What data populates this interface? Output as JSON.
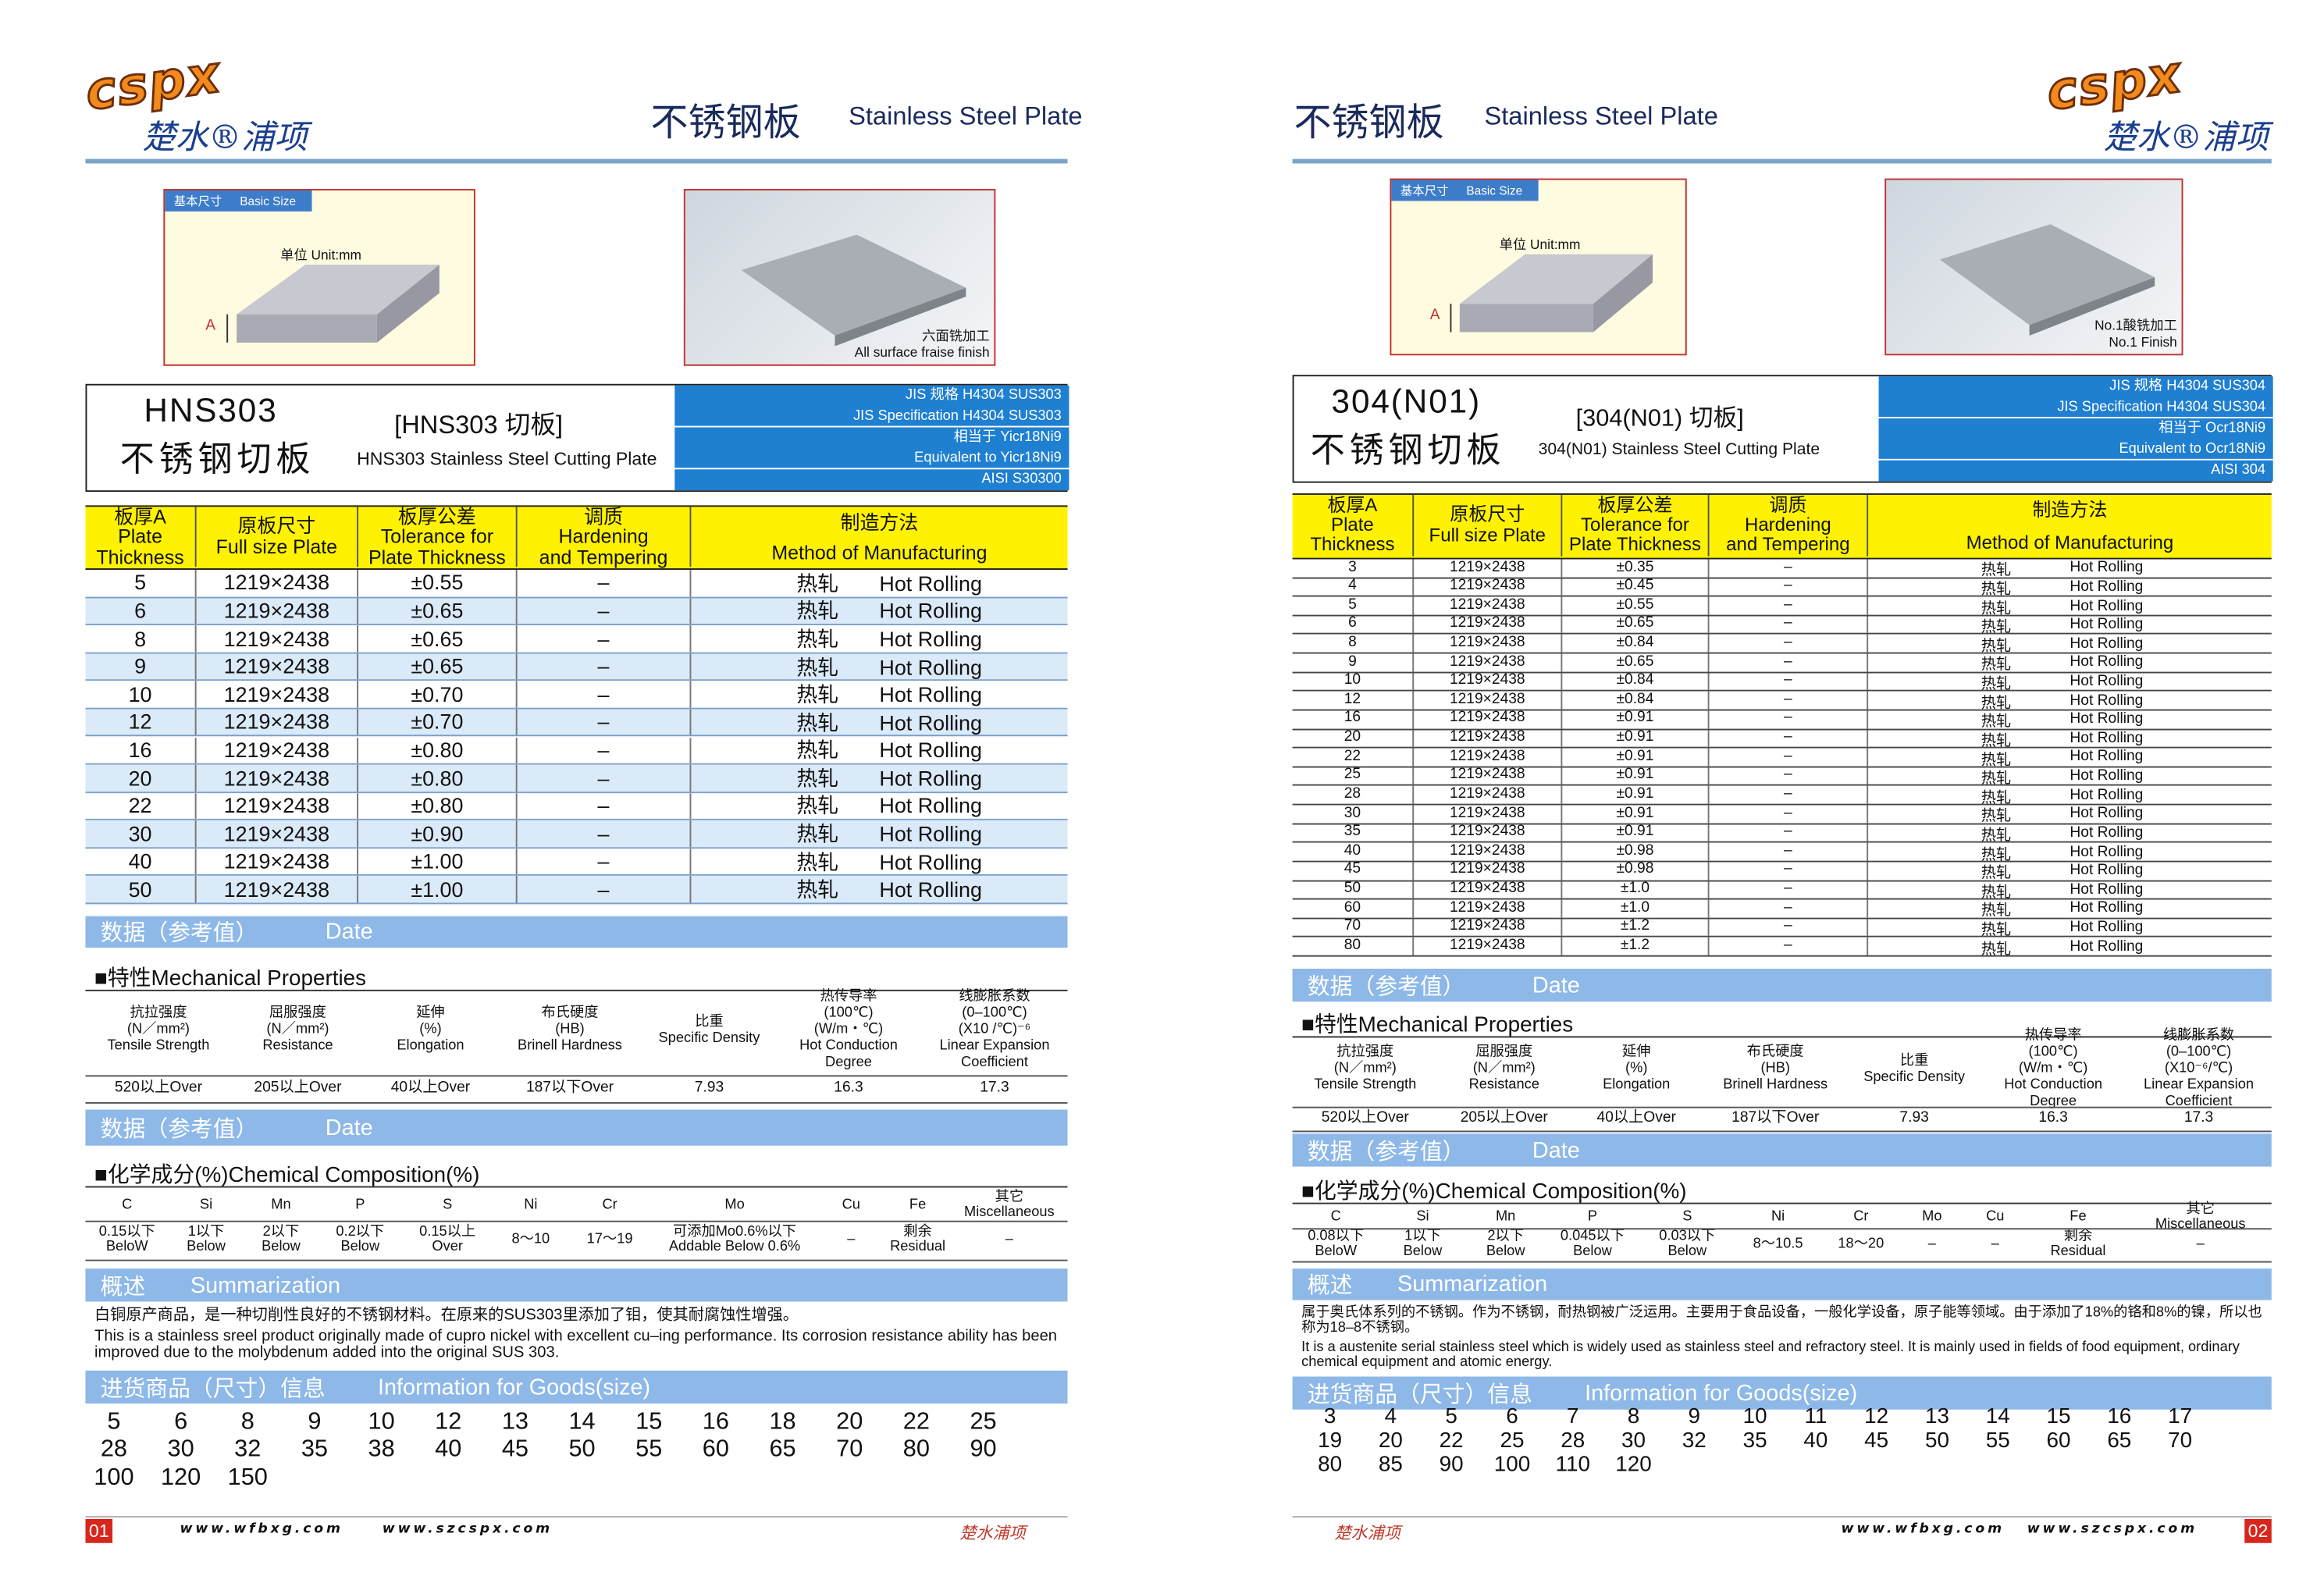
{
  "pages": [
    {
      "logo": {
        "latin": "cspx",
        "chinese": "楚水®浦项"
      },
      "title_cn": "不锈钢板",
      "title_en": "Stainless Steel Plate",
      "basic_size": {
        "label_cn": "基本尺寸",
        "label_en": "Basic Size",
        "unit": "单位  Unit:mm",
        "dim": "A"
      },
      "photo_caption": [
        "六面铣加工",
        "All  surface fraise finish"
      ],
      "product": {
        "name": "HNS303",
        "name_cn": "不锈钢切板",
        "code": "[HNS303  切板]",
        "desc": "HNS303 Stainless Steel Cutting Plate",
        "spec": [
          "JIS 规格 H4304   SUS303",
          "JIS Specification H4304   SUS303",
          "相当于  Yicr18Ni9",
          "Equivalent to  Yicr18Ni9",
          "AISI  S30300"
        ]
      },
      "table": {
        "headers": [
          [
            "板厚A",
            "Plate",
            "Thickness"
          ],
          [
            "原板尺寸",
            "Full size Plate"
          ],
          [
            "板厚公差",
            "Tolerance for",
            "Plate Thickness"
          ],
          [
            "调质",
            "Hardening",
            "and Tempering"
          ],
          [
            "制造方法",
            "Method of Manufacturing"
          ]
        ],
        "rows": [
          [
            "5",
            "1219×2438",
            "±0.55",
            "–",
            "热轧",
            "Hot Rolling"
          ],
          [
            "6",
            "1219×2438",
            "±0.65",
            "–",
            "热轧",
            "Hot Rolling"
          ],
          [
            "8",
            "1219×2438",
            "±0.65",
            "–",
            "热轧",
            "Hot Rolling"
          ],
          [
            "9",
            "1219×2438",
            "±0.65",
            "–",
            "热轧",
            "Hot Rolling"
          ],
          [
            "10",
            "1219×2438",
            "±0.70",
            "–",
            "热轧",
            "Hot Rolling"
          ],
          [
            "12",
            "1219×2438",
            "±0.70",
            "–",
            "热轧",
            "Hot Rolling"
          ],
          [
            "16",
            "1219×2438",
            "±0.80",
            "–",
            "热轧",
            "Hot Rolling"
          ],
          [
            "20",
            "1219×2438",
            "±0.80",
            "–",
            "热轧",
            "Hot Rolling"
          ],
          [
            "22",
            "1219×2438",
            "±0.80",
            "–",
            "热轧",
            "Hot Rolling"
          ],
          [
            "30",
            "1219×2438",
            "±0.90",
            "–",
            "热轧",
            "Hot Rolling"
          ],
          [
            "40",
            "1219×2438",
            "±1.00",
            "–",
            "热轧",
            "Hot Rolling"
          ],
          [
            "50",
            "1219×2438",
            "±1.00",
            "–",
            "热轧",
            "Hot Rolling"
          ]
        ]
      },
      "data_bar": {
        "cn": "数据（参考值）",
        "en": "Date"
      },
      "mech": {
        "title": "■特性Mechanical Properties",
        "headers": [
          [
            "抗拉强度",
            "(N／mm²)",
            "Tensile Strength"
          ],
          [
            "屈服强度",
            "(N／mm²)",
            "Resistance"
          ],
          [
            "延伸",
            "(%)",
            "Elongation"
          ],
          [
            "布氏硬度",
            "(HB)",
            "Brinell Hardness"
          ],
          [
            "比重",
            "Specific Density"
          ],
          [
            "热传导率",
            "(100℃)",
            "(W/m・℃)",
            "Hot Conduction",
            "Degree"
          ],
          [
            "线膨胀系数",
            "(0–100℃)",
            "(X10  /℃)⁻⁶",
            "Linear Expansion",
            "Coefficient"
          ]
        ],
        "values": [
          "520以上Over",
          "205以上Over",
          "40以上Over",
          "187以下Over",
          "7.93",
          "16.3",
          "17.3"
        ]
      },
      "data_bar2": {
        "cn": "数据（参考值）",
        "en": "Date"
      },
      "chem": {
        "title": "■化学成分(%)Chemical Composition(%)",
        "headers": [
          "C",
          "Si",
          "Mn",
          "P",
          "S",
          "Ni",
          "Cr",
          "Mo",
          "Cu",
          "Fe",
          [
            "其它",
            "Miscellaneous"
          ]
        ],
        "values": [
          [
            "0.15以下",
            "BeloW"
          ],
          [
            "1以下",
            "Below"
          ],
          [
            "2以下",
            "Below"
          ],
          [
            "0.2以下",
            "Below"
          ],
          [
            "0.15以上",
            "Over"
          ],
          [
            "8～10"
          ],
          [
            "17～19"
          ],
          [
            "可添加Mo0.6%以下",
            "Addable Below 0.6%"
          ],
          [
            "–"
          ],
          [
            "剩余",
            "Residual"
          ],
          [
            "–"
          ]
        ]
      },
      "summary": {
        "cn": "概述",
        "en": "Summarization",
        "text_cn": "白铜原产商品，是一种切削性良好的不锈钢材料。在原来的SUS303里添加了钼，使其耐腐蚀性增强。",
        "text_en": "This is a stainless sreel product originally made of cupro nickel with excellent cu–ing performance.  Its corrosion resistance ability has been improved due to the molybdenum added into the original SUS 303."
      },
      "goods": {
        "cn": "进货商品（尺寸）信息",
        "en": "Information for Goods(size)",
        "sizes": [
          "5",
          "6",
          "8",
          "9",
          "10",
          "12",
          "13",
          "14",
          "15",
          "16",
          "18",
          "20",
          "22",
          "25",
          "28",
          "30",
          "32",
          "35",
          "38",
          "40",
          "45",
          "50",
          "55",
          "60",
          "65",
          "70",
          "80",
          "90",
          "100",
          "120",
          "150"
        ]
      },
      "footer": {
        "page": "01",
        "urls": [
          "www.wfbxg.com",
          "www.szcspx.com"
        ],
        "brand": "楚水浦项"
      }
    },
    {
      "logo": {
        "latin": "cspx",
        "chinese": "楚水®浦项"
      },
      "title_cn": "不锈钢板",
      "title_en": "Stainless Steel Plate",
      "basic_size": {
        "label_cn": "基本尺寸",
        "label_en": "Basic Size",
        "unit": "单位  Unit:mm",
        "dim": "A"
      },
      "photo_caption": [
        "No.1酸铣加工",
        "No.1 Finish"
      ],
      "product": {
        "name": "304(N01)",
        "name_cn": "不锈钢切板",
        "code": "[304(N01)  切板]",
        "desc": "304(N01) Stainless Steel Cutting Plate",
        "spec": [
          "JIS 规格 H4304   SUS304",
          "JIS Specification H4304   SUS304",
          "相当于  Ocr18Ni9",
          "Equivalent to  Ocr18Ni9",
          "AISI  304"
        ]
      },
      "table": {
        "headers": [
          [
            "板厚A",
            "Plate",
            "Thickness"
          ],
          [
            "原板尺寸",
            "Full size Plate"
          ],
          [
            "板厚公差",
            "Tolerance for",
            "Plate Thickness"
          ],
          [
            "调质",
            "Hardening",
            "and Tempering"
          ],
          [
            "制造方法",
            "Method of Manufacturing"
          ]
        ],
        "rows": [
          [
            "3",
            "1219×2438",
            "±0.35",
            "–",
            "热轧",
            "Hot Rolling"
          ],
          [
            "4",
            "1219×2438",
            "±0.45",
            "–",
            "热轧",
            "Hot Rolling"
          ],
          [
            "5",
            "1219×2438",
            "±0.55",
            "–",
            "热轧",
            "Hot Rolling"
          ],
          [
            "6",
            "1219×2438",
            "±0.65",
            "–",
            "热轧",
            "Hot Rolling"
          ],
          [
            "8",
            "1219×2438",
            "±0.84",
            "–",
            "热轧",
            "Hot Rolling"
          ],
          [
            "9",
            "1219×2438",
            "±0.65",
            "–",
            "热轧",
            "Hot Rolling"
          ],
          [
            "10",
            "1219×2438",
            "±0.84",
            "–",
            "热轧",
            "Hot Rolling"
          ],
          [
            "12",
            "1219×2438",
            "±0.84",
            "–",
            "热轧",
            "Hot Rolling"
          ],
          [
            "16",
            "1219×2438",
            "±0.91",
            "–",
            "热轧",
            "Hot Rolling"
          ],
          [
            "20",
            "1219×2438",
            "±0.91",
            "–",
            "热轧",
            "Hot Rolling"
          ],
          [
            "22",
            "1219×2438",
            "±0.91",
            "–",
            "热轧",
            "Hot Rolling"
          ],
          [
            "25",
            "1219×2438",
            "±0.91",
            "–",
            "热轧",
            "Hot Rolling"
          ],
          [
            "28",
            "1219×2438",
            "±0.91",
            "–",
            "热轧",
            "Hot Rolling"
          ],
          [
            "30",
            "1219×2438",
            "±0.91",
            "–",
            "热轧",
            "Hot Rolling"
          ],
          [
            "35",
            "1219×2438",
            "±0.91",
            "–",
            "热轧",
            "Hot Rolling"
          ],
          [
            "40",
            "1219×2438",
            "±0.98",
            "–",
            "热轧",
            "Hot Rolling"
          ],
          [
            "45",
            "1219×2438",
            "±0.98",
            "–",
            "热轧",
            "Hot Rolling"
          ],
          [
            "50",
            "1219×2438",
            "±1.0",
            "–",
            "热轧",
            "Hot Rolling"
          ],
          [
            "60",
            "1219×2438",
            "±1.0",
            "–",
            "热轧",
            "Hot Rolling"
          ],
          [
            "70",
            "1219×2438",
            "±1.2",
            "–",
            "热轧",
            "Hot Rolling"
          ],
          [
            "80",
            "1219×2438",
            "±1.2",
            "–",
            "热轧",
            "Hot Rolling"
          ]
        ]
      },
      "data_bar": {
        "cn": "数据（参考值）",
        "en": "Date"
      },
      "mech": {
        "title": "■特性Mechanical Properties",
        "headers": [
          [
            "抗拉强度",
            "(N／mm²)",
            "Tensile Strength"
          ],
          [
            "屈服强度",
            "(N／mm²)",
            "Resistance"
          ],
          [
            "延伸",
            "(%)",
            "Elongation"
          ],
          [
            "布氏硬度",
            "(HB)",
            "Brinell Hardness"
          ],
          [
            "比重",
            "Specific Density"
          ],
          [
            "热传导率",
            "(100℃)",
            "(W/m・℃)",
            "Hot Conduction",
            "Degree"
          ],
          [
            "线膨胀系数",
            "(0–100℃)",
            "(X10⁻⁶/℃)",
            "Linear Expansion",
            "Coefficient"
          ]
        ],
        "values": [
          "520以上Over",
          "205以上Over",
          "40以上Over",
          "187以下Over",
          "7.93",
          "16.3",
          "17.3"
        ]
      },
      "data_bar2": {
        "cn": "数据（参考值）",
        "en": "Date"
      },
      "chem": {
        "title": "■化学成分(%)Chemical Composition(%)",
        "headers": [
          "C",
          "Si",
          "Mn",
          "P",
          "S",
          "Ni",
          "Cr",
          "Mo",
          "Cu",
          "Fe",
          [
            "其它",
            "Miscellaneous"
          ]
        ],
        "values": [
          [
            "0.08以下",
            "BeloW"
          ],
          [
            "1以下",
            "Below"
          ],
          [
            "2以下",
            "Below"
          ],
          [
            "0.045以下",
            "Below"
          ],
          [
            "0.03以下",
            "Below"
          ],
          [
            "8～10.5"
          ],
          [
            "18～20"
          ],
          [
            "–"
          ],
          [
            "–"
          ],
          [
            "剩余",
            "Residual"
          ],
          [
            "–"
          ]
        ]
      },
      "summary": {
        "cn": "概述",
        "en": "Summarization",
        "text_cn": "属于奥氏体系列的不锈钢。作为不锈钢，耐热钢被广泛运用。主要用于食品设备，一般化学设备，原子能等领域。由于添加了18%的铬和8%的镍，所以也称为18–8不锈钢。",
        "text_en": "It is a austenite serial stainless steel which is widely used as stainless steel and refractory steel.  It is mainly used in fields of food equipment, ordinary chemical equipment and atomic energy."
      },
      "goods": {
        "cn": "进货商品（尺寸）信息",
        "en": "Information for Goods(size)",
        "sizes": [
          "3",
          "4",
          "5",
          "6",
          "7",
          "8",
          "9",
          "10",
          "11",
          "12",
          "13",
          "14",
          "15",
          "16",
          "17",
          "19",
          "20",
          "22",
          "25",
          "28",
          "30",
          "32",
          "35",
          "40",
          "45",
          "50",
          "55",
          "60",
          "65",
          "70",
          "80",
          "85",
          "90",
          "100",
          "110",
          "120"
        ]
      },
      "footer": {
        "page": "02",
        "urls": [
          "www.wfbxg.com",
          "www.szcspx.com"
        ],
        "brand": "楚水浦项"
      }
    }
  ]
}
